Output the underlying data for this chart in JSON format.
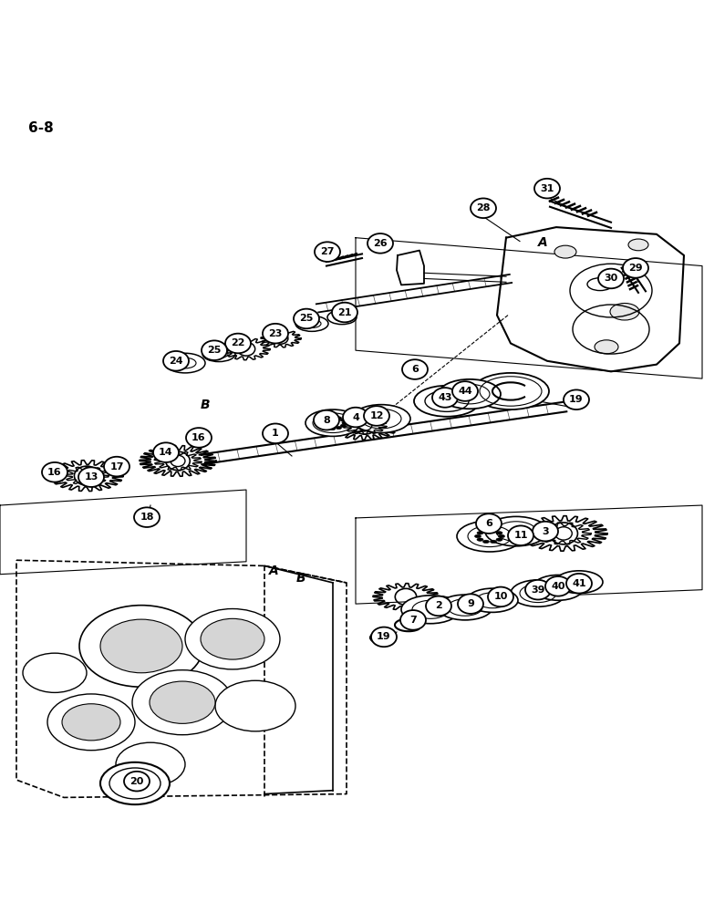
{
  "page_label": "6-8",
  "bg": "#ffffff",
  "lc": "#000000",
  "figsize": [
    7.72,
    10.0
  ],
  "dpi": 100,
  "circle_labels": [
    [
      "1",
      302,
      468
    ],
    [
      "2",
      481,
      713
    ],
    [
      "3",
      598,
      607
    ],
    [
      "4",
      390,
      445
    ],
    [
      "6",
      455,
      377
    ],
    [
      "6",
      536,
      596
    ],
    [
      "7",
      453,
      733
    ],
    [
      "8",
      358,
      449
    ],
    [
      "9",
      516,
      710
    ],
    [
      "10",
      549,
      700
    ],
    [
      "11",
      571,
      613
    ],
    [
      "12",
      413,
      443
    ],
    [
      "13",
      100,
      530
    ],
    [
      "14",
      182,
      495
    ],
    [
      "16",
      60,
      523
    ],
    [
      "16",
      218,
      474
    ],
    [
      "17",
      128,
      515
    ],
    [
      "18",
      161,
      587
    ],
    [
      "19",
      632,
      420
    ],
    [
      "19",
      421,
      757
    ],
    [
      "20",
      150,
      962
    ],
    [
      "21",
      378,
      296
    ],
    [
      "22",
      261,
      340
    ],
    [
      "23",
      302,
      326
    ],
    [
      "24",
      193,
      365
    ],
    [
      "25",
      235,
      350
    ],
    [
      "25",
      336,
      305
    ],
    [
      "26",
      417,
      198
    ],
    [
      "27",
      359,
      210
    ],
    [
      "28",
      530,
      148
    ],
    [
      "29",
      697,
      233
    ],
    [
      "30",
      670,
      248
    ],
    [
      "31",
      600,
      120
    ],
    [
      "39",
      590,
      690
    ],
    [
      "40",
      612,
      685
    ],
    [
      "41",
      635,
      681
    ],
    [
      "43",
      488,
      417
    ],
    [
      "44",
      510,
      408
    ]
  ],
  "letter_labels": [
    [
      "A",
      595,
      197
    ],
    [
      "A",
      300,
      663
    ],
    [
      "B",
      330,
      673
    ],
    [
      "B",
      225,
      428
    ]
  ]
}
